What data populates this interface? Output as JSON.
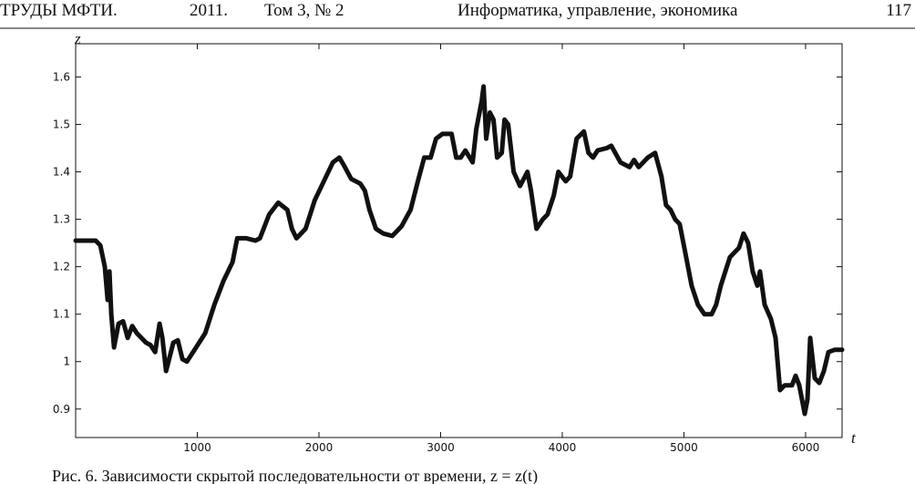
{
  "header": {
    "journal": "ТРУДЫ МФТИ.",
    "year": "2011.",
    "volume": "Том 3, № 2",
    "section": "Информатика, управление, экономика",
    "page": "117"
  },
  "chart_data": {
    "type": "line",
    "xlabel": "t",
    "ylabel": "z",
    "xlim": [
      0,
      6300
    ],
    "ylim": [
      0.84,
      1.67
    ],
    "xticks": [
      1000,
      2000,
      3000,
      4000,
      5000,
      6000
    ],
    "yticks": [
      0.9,
      1,
      1.1,
      1.2,
      1.3,
      1.4,
      1.5,
      1.6
    ],
    "x": [
      0,
      165,
      203,
      240,
      263,
      278,
      293,
      315,
      353,
      390,
      428,
      465,
      503,
      578,
      615,
      653,
      690,
      713,
      743,
      803,
      840,
      878,
      915,
      990,
      1065,
      1140,
      1215,
      1290,
      1328,
      1403,
      1478,
      1515,
      1590,
      1665,
      1740,
      1778,
      1815,
      1890,
      1965,
      2040,
      2115,
      2168,
      2213,
      2265,
      2340,
      2378,
      2415,
      2468,
      2528,
      2603,
      2678,
      2753,
      2813,
      2865,
      2918,
      2963,
      3015,
      3090,
      3128,
      3165,
      3203,
      3263,
      3293,
      3338,
      3353,
      3375,
      3405,
      3435,
      3465,
      3503,
      3525,
      3555,
      3600,
      3653,
      3713,
      3743,
      3788,
      3840,
      3878,
      3930,
      3968,
      4028,
      4065,
      4118,
      4178,
      4215,
      4253,
      4290,
      4365,
      4403,
      4478,
      4553,
      4590,
      4628,
      4703,
      4763,
      4815,
      4853,
      4890,
      4928,
      4965,
      5018,
      5063,
      5115,
      5168,
      5228,
      5265,
      5303,
      5378,
      5453,
      5490,
      5528,
      5565,
      5603,
      5625,
      5663,
      5715,
      5753,
      5790,
      5828,
      5888,
      5918,
      5948,
      5993,
      6015,
      6038,
      6075,
      6113,
      6150,
      6188,
      6240,
      6300
    ],
    "series": [
      {
        "color": "#111111",
        "values": [
          1.255,
          1.255,
          1.245,
          1.2,
          1.13,
          1.19,
          1.1,
          1.03,
          1.08,
          1.085,
          1.05,
          1.075,
          1.06,
          1.04,
          1.035,
          1.02,
          1.08,
          1.05,
          0.98,
          1.04,
          1.045,
          1.005,
          1.0,
          1.03,
          1.06,
          1.12,
          1.17,
          1.21,
          1.26,
          1.26,
          1.255,
          1.26,
          1.31,
          1.335,
          1.32,
          1.28,
          1.26,
          1.28,
          1.34,
          1.38,
          1.42,
          1.43,
          1.41,
          1.385,
          1.375,
          1.36,
          1.32,
          1.28,
          1.27,
          1.265,
          1.285,
          1.32,
          1.38,
          1.43,
          1.43,
          1.47,
          1.48,
          1.48,
          1.43,
          1.43,
          1.445,
          1.42,
          1.49,
          1.55,
          1.58,
          1.47,
          1.525,
          1.51,
          1.43,
          1.44,
          1.51,
          1.5,
          1.4,
          1.37,
          1.4,
          1.36,
          1.28,
          1.3,
          1.31,
          1.35,
          1.4,
          1.38,
          1.39,
          1.47,
          1.485,
          1.44,
          1.43,
          1.445,
          1.45,
          1.455,
          1.42,
          1.41,
          1.425,
          1.41,
          1.43,
          1.44,
          1.39,
          1.33,
          1.32,
          1.3,
          1.29,
          1.22,
          1.16,
          1.12,
          1.1,
          1.1,
          1.12,
          1.16,
          1.22,
          1.24,
          1.27,
          1.25,
          1.19,
          1.16,
          1.19,
          1.12,
          1.09,
          1.05,
          0.94,
          0.95,
          0.95,
          0.97,
          0.95,
          0.89,
          0.92,
          1.05,
          0.965,
          0.955,
          0.98,
          1.02,
          1.025,
          1.025
        ]
      }
    ]
  },
  "caption": "Рис. 6. Зависимости скрытой последовательности от времени, z = z(t)"
}
